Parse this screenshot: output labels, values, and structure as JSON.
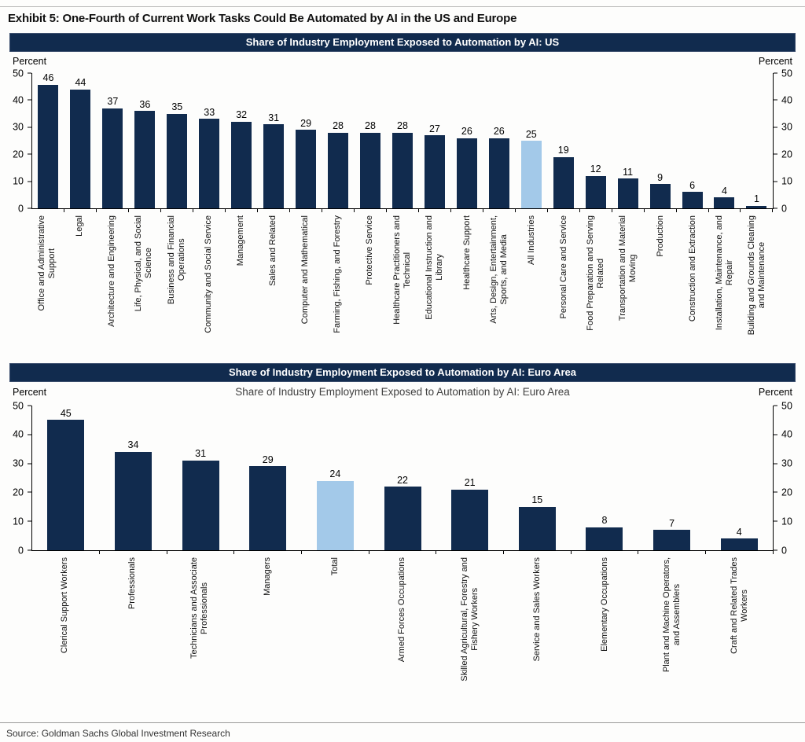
{
  "page": {
    "exhibit_title": "Exhibit 5: One-Fourth of Current Work Tasks Could Be Automated by AI in the US and Europe",
    "source": "Source: Goldman Sachs Global Investment Research"
  },
  "colors": {
    "navy": "#112b4e",
    "highlight_blue": "#a3c9e9",
    "title_bar_text": "#ffffff"
  },
  "chart_data": [
    {
      "type": "bar",
      "title": "Share of Industry Employment Exposed to Automation by AI: US",
      "inner_title": "",
      "ylabel_left": "Percent",
      "ylabel_right": "Percent",
      "ylim": [
        0,
        50
      ],
      "yticks": [
        0,
        10,
        20,
        30,
        40,
        50
      ],
      "grid": false,
      "legend": "none",
      "highlight_category": "All Industries",
      "categories": [
        "Office and Administrative\nSupport",
        "Legal",
        "Architecture and Engineering",
        "Life, Physical, and Social\nScience",
        "Business and Financial\nOperations",
        "Community and Social Service",
        "Management",
        "Sales and Related",
        "Computer and Mathematical",
        "Farming, Fishing, and Forestry",
        "Protective Service",
        "Healthcare Practitioners and\nTechnical",
        "Educational Instruction and\nLibrary",
        "Healthcare Support",
        "Arts, Design, Entertainment,\nSports, and Media",
        "All Industries",
        "Personal Care and Service",
        "Food Preparation and Serving\nRelated",
        "Transportation and Material\nMoving",
        "Production",
        "Construction and Extraction",
        "Installation, Maintenance, and\nRepair",
        "Building and Grounds Cleaning\nand Maintenance"
      ],
      "values": [
        46,
        44,
        37,
        36,
        35,
        33,
        32,
        31,
        29,
        28,
        28,
        28,
        27,
        26,
        26,
        25,
        19,
        12,
        11,
        9,
        6,
        4,
        1
      ]
    },
    {
      "type": "bar",
      "title": "Share of Industry Employment Exposed to Automation by AI: Euro Area",
      "inner_title": "Share of Industry Employment Exposed to Automation by AI: Euro Area",
      "ylabel_left": "Percent",
      "ylabel_right": "Percent",
      "ylim": [
        0,
        50
      ],
      "yticks": [
        0,
        10,
        20,
        30,
        40,
        50
      ],
      "grid": false,
      "legend": "none",
      "highlight_category": "Total",
      "categories": [
        "Clerical Support Workers",
        "Professionals",
        "Technicians and Associate\nProfessionals",
        "Managers",
        "Total",
        "Armed Forces Occupations",
        "Skilled Agricultural, Forestry and\nFishery Workers",
        "Service and Sales Workers",
        "Elementary Occupations",
        "Plant and Machine Operators,\nand Assemblers",
        "Craft and Related Trades\nWorkers"
      ],
      "values": [
        45,
        34,
        31,
        29,
        24,
        22,
        21,
        15,
        8,
        7,
        4
      ]
    }
  ]
}
